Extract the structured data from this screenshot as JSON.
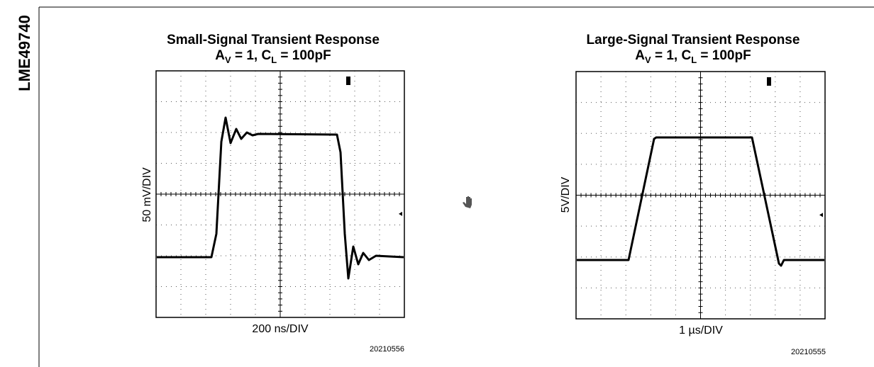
{
  "header": {
    "side_label": "LME49740"
  },
  "figures": [
    {
      "title": "Small-Signal Transient Response",
      "subtitle": [
        "A",
        "V",
        " = 1, C",
        "L",
        " = 100pF"
      ],
      "y_label": "50 mV/DIV",
      "x_label": "200 ns/DIV",
      "figure_id": "20210556"
    },
    {
      "title": "Large-Signal Transient Response",
      "subtitle": [
        "A",
        "V",
        " = 1, C",
        "L",
        " = 100pF"
      ],
      "y_label": "5V/DIV",
      "x_label": "1 µs/DIV",
      "figure_id": "20210555"
    }
  ]
}
